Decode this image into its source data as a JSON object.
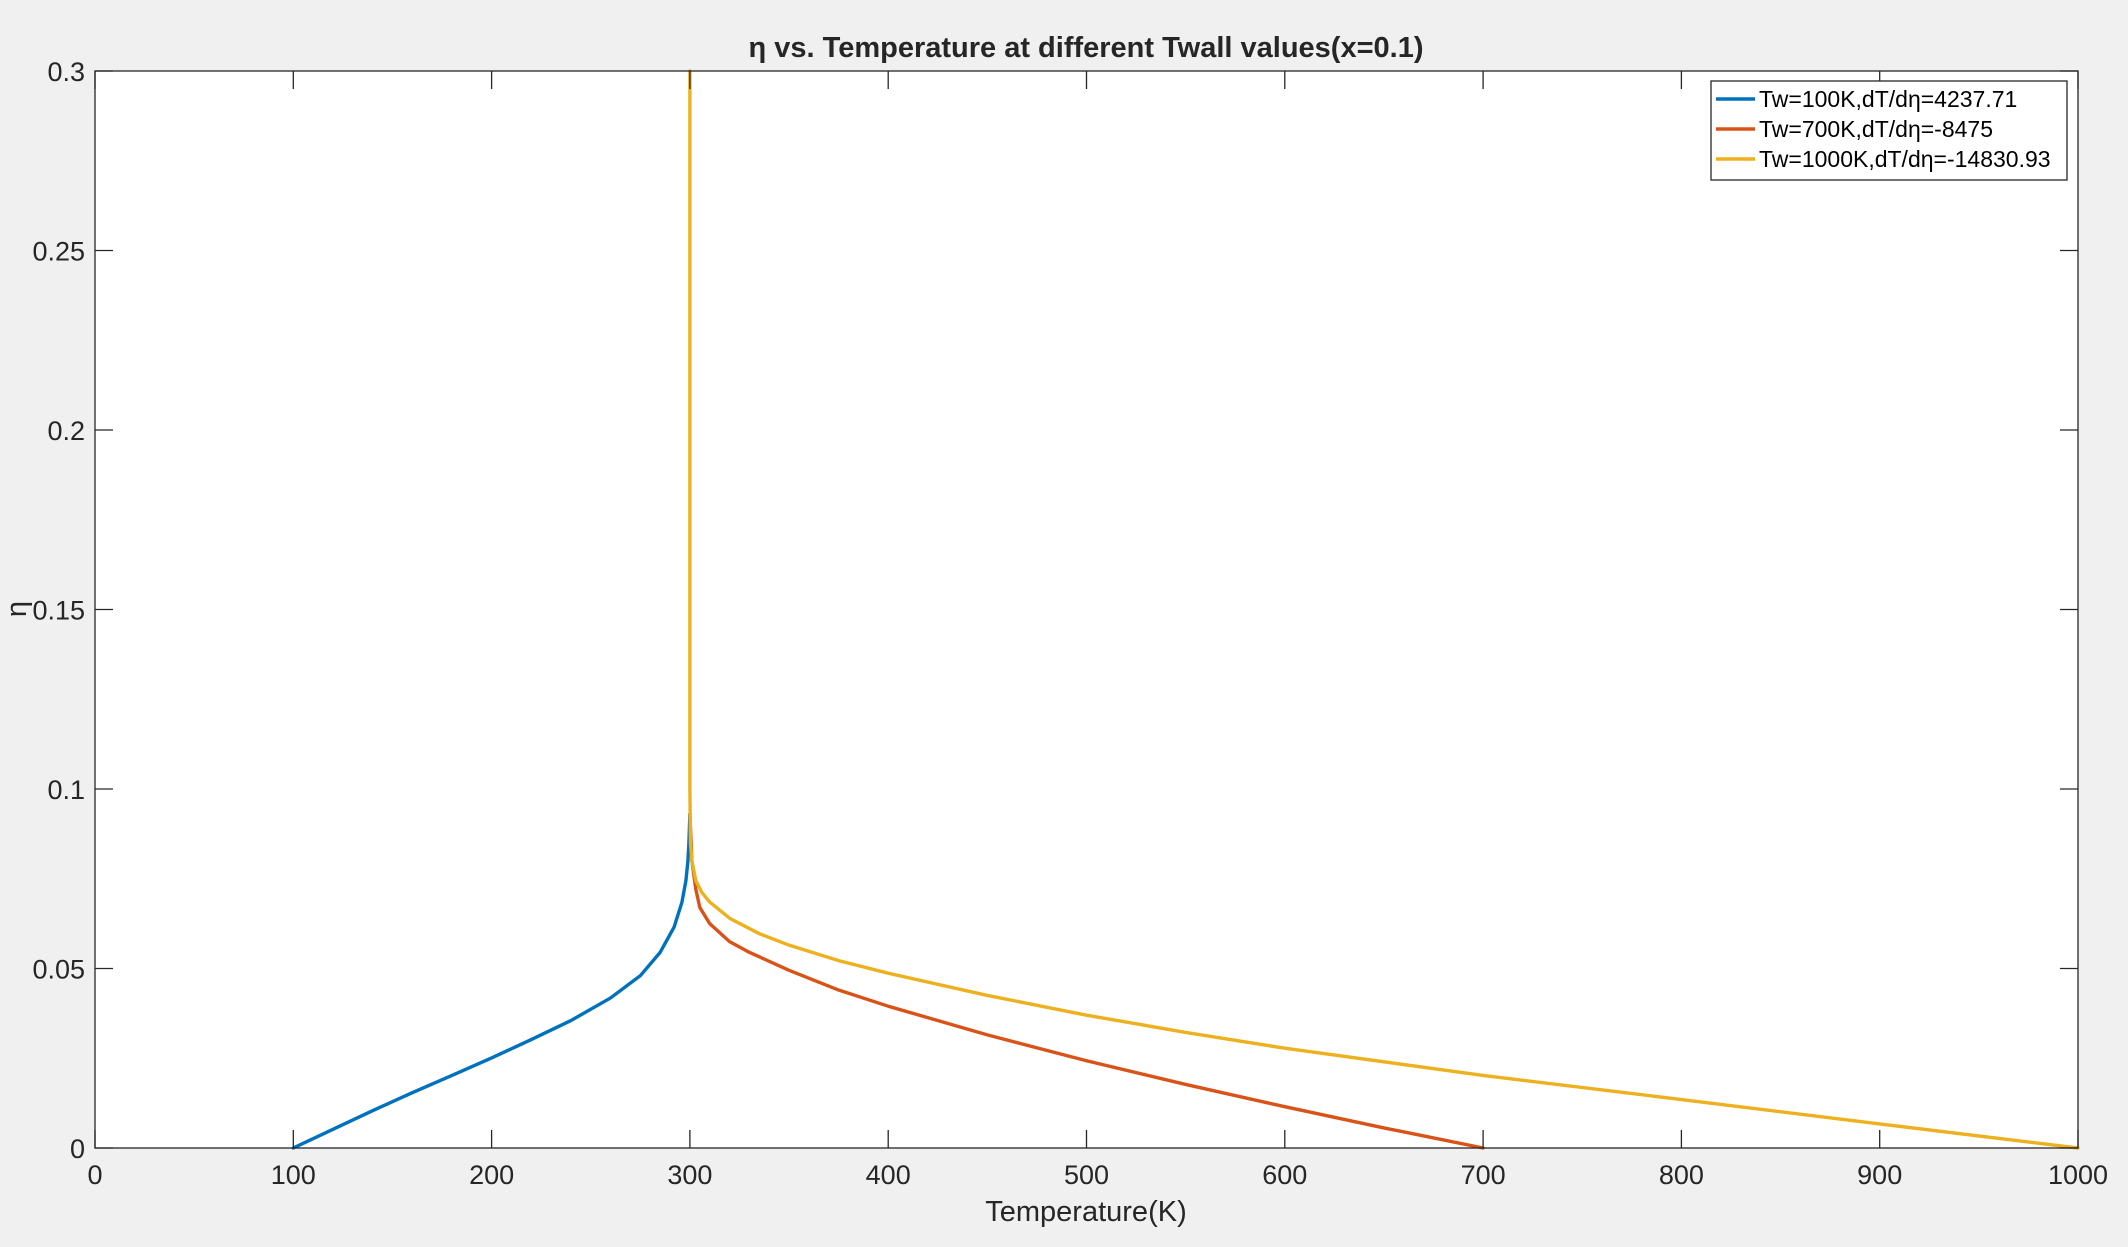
{
  "chart_data": {
    "type": "line",
    "title": "η vs. Temperature at different Twall values(x=0.1)",
    "xlabel": "Temperature(K)",
    "ylabel": "η",
    "xlim": [
      0,
      1000
    ],
    "ylim": [
      0,
      0.3
    ],
    "xticks": [
      0,
      100,
      200,
      300,
      400,
      500,
      600,
      700,
      800,
      900,
      1000
    ],
    "yticks": [
      0,
      0.05,
      0.1,
      0.15,
      0.2,
      0.25,
      0.3
    ],
    "xtick_labels": [
      "0",
      "100",
      "200",
      "300",
      "400",
      "500",
      "600",
      "700",
      "800",
      "900",
      "1000"
    ],
    "ytick_labels": [
      "0",
      "0.05",
      "0.1",
      "0.15",
      "0.2",
      "0.25",
      "0.3"
    ],
    "grid": false,
    "legend_position": "top-right",
    "series": [
      {
        "name": "Tw=100K,dT/dη=4237.71",
        "color": "#0072BD",
        "x": [
          100,
          120,
          140,
          160,
          180,
          200,
          220,
          240,
          260,
          275,
          285,
          292,
          296,
          298,
          299,
          299.5,
          300
        ],
        "y": [
          0,
          0.0052,
          0.0104,
          0.0154,
          0.0202,
          0.0251,
          0.0302,
          0.0355,
          0.0418,
          0.048,
          0.0545,
          0.0615,
          0.0685,
          0.0745,
          0.08,
          0.085,
          0.093
        ]
      },
      {
        "name": "Tw=700K,dT/dη=-8475",
        "color": "#D95319",
        "x": [
          300,
          301,
          303,
          305,
          310,
          320,
          330,
          350,
          375,
          400,
          450,
          500,
          550,
          600,
          650,
          700
        ],
        "y": [
          0.093,
          0.08,
          0.072,
          0.067,
          0.0625,
          0.0575,
          0.0545,
          0.0495,
          0.044,
          0.0395,
          0.0315,
          0.0243,
          0.0177,
          0.0115,
          0.0056,
          0
        ]
      },
      {
        "name": "Tw=1000K,dT/dη=-14830.93",
        "color": "#EDB120",
        "x": [
          300,
          300,
          300,
          300.3,
          301,
          303,
          306,
          310,
          320,
          335,
          350,
          375,
          400,
          450,
          500,
          550,
          600,
          700,
          800,
          900,
          1000
        ],
        "y": [
          0.3,
          0.2,
          0.1,
          0.085,
          0.08,
          0.0745,
          0.0712,
          0.0685,
          0.064,
          0.0597,
          0.0565,
          0.0522,
          0.0487,
          0.0425,
          0.037,
          0.0322,
          0.0278,
          0.0202,
          0.0135,
          0.0067,
          0
        ]
      }
    ]
  }
}
